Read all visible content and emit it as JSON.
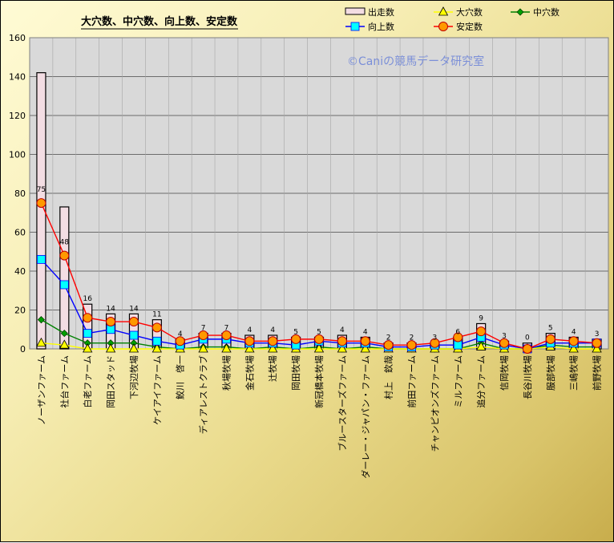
{
  "chart_data": {
    "type": "bar",
    "title": "大穴数、中穴数、向上数、安定数",
    "watermark": "©Caniの競馬データ研究室",
    "ylim": [
      0,
      160
    ],
    "yticks": [
      0,
      20,
      40,
      60,
      80,
      100,
      120,
      140,
      160
    ],
    "grid": true,
    "legend_position": "top-right",
    "categories": [
      "ノーザンファーム",
      "社台ファーム",
      "白老ファーム",
      "岡田スタッド",
      "下河辺牧場",
      "ケイアイファーム",
      "鮫川　啓一",
      "ディアレストクラブ",
      "秋場牧場",
      "金石牧場",
      "辻牧場",
      "岡田牧場",
      "新冠橋本牧場",
      "ブルースターズファーム",
      "ダーレー・ジャパン・ファーム",
      "村上　欽哉",
      "前田ファーム",
      "チャンピオンズファーム",
      "ミルファーム",
      "追分ファーム",
      "信岡牧場",
      "長谷川牧場",
      "服部牧場",
      "三嶋牧場",
      "前野牧場"
    ],
    "series": [
      {
        "name": "出走数",
        "kind": "bar",
        "color": "#f3dde3",
        "values": [
          142,
          73,
          23,
          18,
          18,
          15,
          5,
          8,
          8,
          7,
          7,
          6,
          6,
          7,
          6,
          3,
          3,
          3,
          6,
          13,
          4,
          3,
          8,
          6,
          5
        ]
      },
      {
        "name": "大穴数",
        "kind": "line",
        "color": "#ffff00",
        "values": [
          3,
          2,
          0,
          0,
          0,
          0,
          0,
          0,
          0,
          0,
          0,
          0,
          0,
          0,
          0,
          0,
          0,
          0,
          0,
          1,
          0,
          0,
          1,
          0,
          0
        ]
      },
      {
        "name": "中穴数",
        "kind": "line",
        "color": "#008000",
        "values": [
          15,
          8,
          3,
          3,
          3,
          1,
          0,
          1,
          1,
          0,
          1,
          0,
          1,
          0,
          1,
          0,
          0,
          0,
          0,
          3,
          0,
          0,
          2,
          1,
          1
        ]
      },
      {
        "name": "向上数",
        "kind": "line",
        "color": "#0000ff",
        "values": [
          46,
          33,
          8,
          10,
          7,
          4,
          2,
          5,
          5,
          3,
          3,
          2,
          4,
          3,
          3,
          1,
          1,
          2,
          2,
          6,
          2,
          0,
          3,
          3,
          3
        ]
      },
      {
        "name": "安定数",
        "kind": "line",
        "color": "#ff0000",
        "values": [
          75,
          48,
          16,
          14,
          14,
          11,
          4,
          7,
          7,
          4,
          4,
          5,
          5,
          4,
          4,
          2,
          2,
          3,
          6,
          9,
          3,
          0,
          5,
          4,
          3
        ]
      }
    ],
    "data_labels": {
      "series": "安定数",
      "values": [
        "75",
        "48",
        "16",
        "14",
        "14",
        "11",
        "4",
        "7",
        "7",
        "4",
        "4",
        "5",
        "5",
        "4",
        "4",
        "2",
        "2",
        "3",
        "6",
        "9",
        "3",
        "0",
        "5",
        "4",
        "3"
      ]
    }
  }
}
